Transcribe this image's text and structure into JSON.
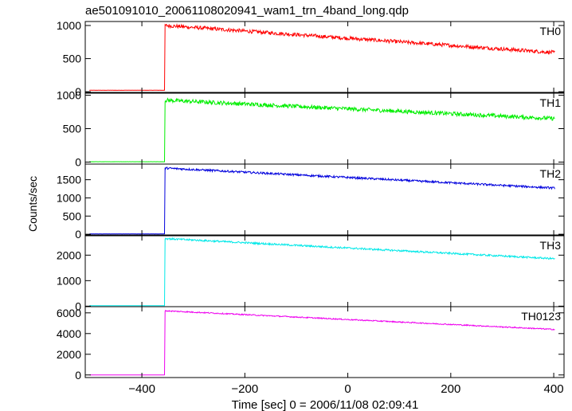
{
  "chart_data": {
    "type": "line",
    "title": "ae501091010_20061108020941_wam1_trn_4band_long.qdp",
    "xlabel": "Time [sec] 0 = 2006/11/08 02:09:41",
    "ylabel": "Counts/sec",
    "xlim": [
      -510,
      420
    ],
    "xticks": [
      -400,
      -200,
      0,
      200,
      400
    ],
    "grid": false,
    "panels": [
      {
        "name": "TH0",
        "color": "#ff0000",
        "ylim": [
          -10,
          1060
        ],
        "yticks": [
          0,
          500,
          1000
        ],
        "baseline": 22,
        "trigger_time": -355,
        "peak": 1000,
        "end_value": 590,
        "noise": 28
      },
      {
        "name": "TH1",
        "color": "#00ee00",
        "ylim": [
          -30,
          1030
        ],
        "yticks": [
          0,
          500,
          1000
        ],
        "baseline": 5,
        "trigger_time": -355,
        "peak": 925,
        "end_value": 650,
        "noise": 30
      },
      {
        "name": "TH2",
        "color": "#0000dd",
        "ylim": [
          -20,
          1930
        ],
        "yticks": [
          0,
          500,
          1000,
          1500
        ],
        "baseline": 10,
        "trigger_time": -355,
        "peak": 1820,
        "end_value": 1270,
        "noise": 28
      },
      {
        "name": "TH3",
        "color": "#00e8e8",
        "ylim": [
          -20,
          2760
        ],
        "yticks": [
          0,
          1000,
          2000
        ],
        "baseline": 20,
        "trigger_time": -355,
        "peak": 2650,
        "end_value": 1860,
        "noise": 35
      },
      {
        "name": "TH0123",
        "color": "#ee00ee",
        "ylim": [
          -250,
          6600
        ],
        "yticks": [
          0,
          2000,
          4000,
          6000
        ],
        "baseline": 0,
        "trigger_time": -355,
        "peak": 6200,
        "end_value": 4400,
        "noise": 55
      }
    ]
  }
}
